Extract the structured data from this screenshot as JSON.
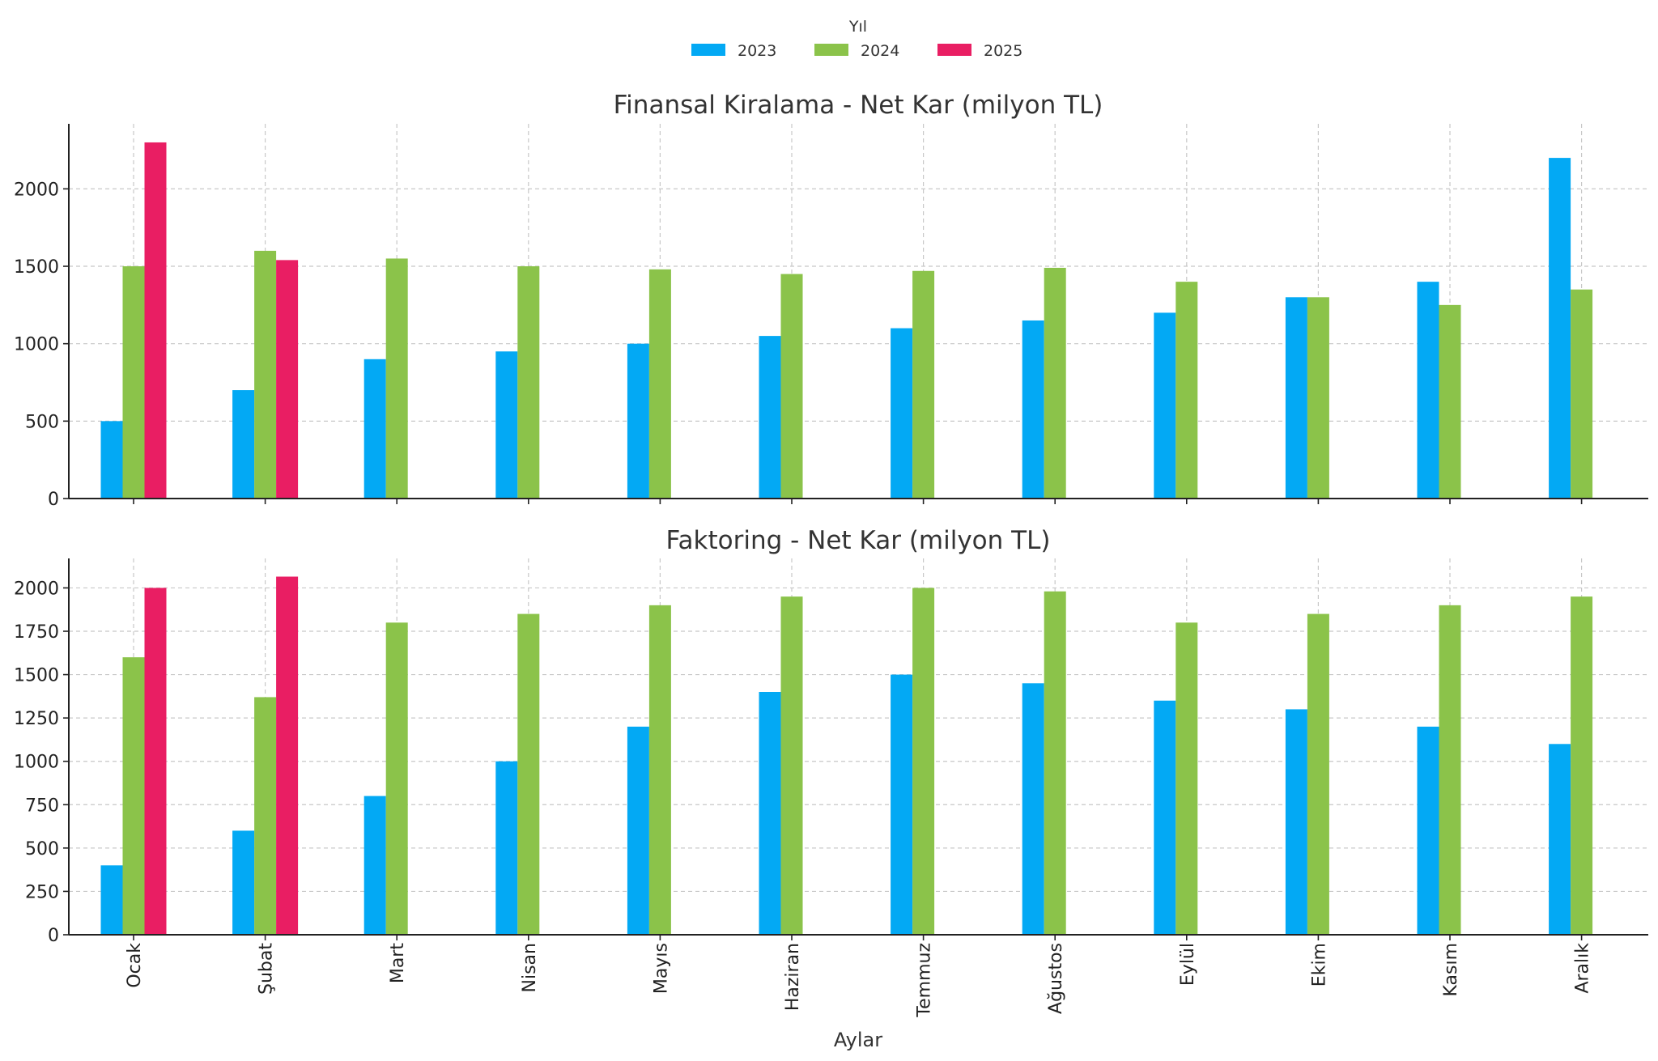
{
  "figure": {
    "legend_title": "Yıl",
    "xlabel": "Aylar"
  },
  "colors": {
    "2023": "#03A9F4",
    "2024": "#8BC34A",
    "2025": "#E91E63"
  },
  "chart_data": [
    {
      "type": "bar",
      "title": "Finansal Kiralama - Net Kar (milyon TL)",
      "xlabel": "Aylar",
      "ylabel": "",
      "ylim": [
        0,
        2420
      ],
      "yticks": [
        0,
        500,
        1000,
        1500,
        2000
      ],
      "grid": true,
      "legend_position": "top-center",
      "categories": [
        "Ocak",
        "Şubat",
        "Mart",
        "Nisan",
        "Mayıs",
        "Haziran",
        "Temmuz",
        "Ağustos",
        "Eylül",
        "Ekim",
        "Kasım",
        "Aralık"
      ],
      "series": [
        {
          "name": "2023",
          "values": [
            500,
            700,
            900,
            950,
            1000,
            1050,
            1100,
            1150,
            1200,
            1300,
            1400,
            2200
          ]
        },
        {
          "name": "2024",
          "values": [
            1500,
            1600,
            1550,
            1500,
            1480,
            1450,
            1470,
            1490,
            1400,
            1300,
            1250,
            1350
          ]
        },
        {
          "name": "2025",
          "values": [
            2300,
            1540,
            null,
            null,
            null,
            null,
            null,
            null,
            null,
            null,
            null,
            null
          ]
        }
      ]
    },
    {
      "type": "bar",
      "title": "Faktoring - Net Kar (milyon TL)",
      "xlabel": "Aylar",
      "ylabel": "",
      "ylim": [
        0,
        2170
      ],
      "yticks": [
        0,
        250,
        500,
        750,
        1000,
        1250,
        1500,
        1750,
        2000
      ],
      "grid": true,
      "legend_position": "top-center",
      "categories": [
        "Ocak",
        "Şubat",
        "Mart",
        "Nisan",
        "Mayıs",
        "Haziran",
        "Temmuz",
        "Ağustos",
        "Eylül",
        "Ekim",
        "Kasım",
        "Aralık"
      ],
      "series": [
        {
          "name": "2023",
          "values": [
            400,
            600,
            800,
            1000,
            1200,
            1400,
            1500,
            1450,
            1350,
            1300,
            1200,
            1100
          ]
        },
        {
          "name": "2024",
          "values": [
            1600,
            1370,
            1800,
            1850,
            1900,
            1950,
            2000,
            1980,
            1800,
            1850,
            1900,
            1950
          ]
        },
        {
          "name": "2025",
          "values": [
            2000,
            2065,
            null,
            null,
            null,
            null,
            null,
            null,
            null,
            null,
            null,
            null
          ]
        }
      ]
    }
  ]
}
